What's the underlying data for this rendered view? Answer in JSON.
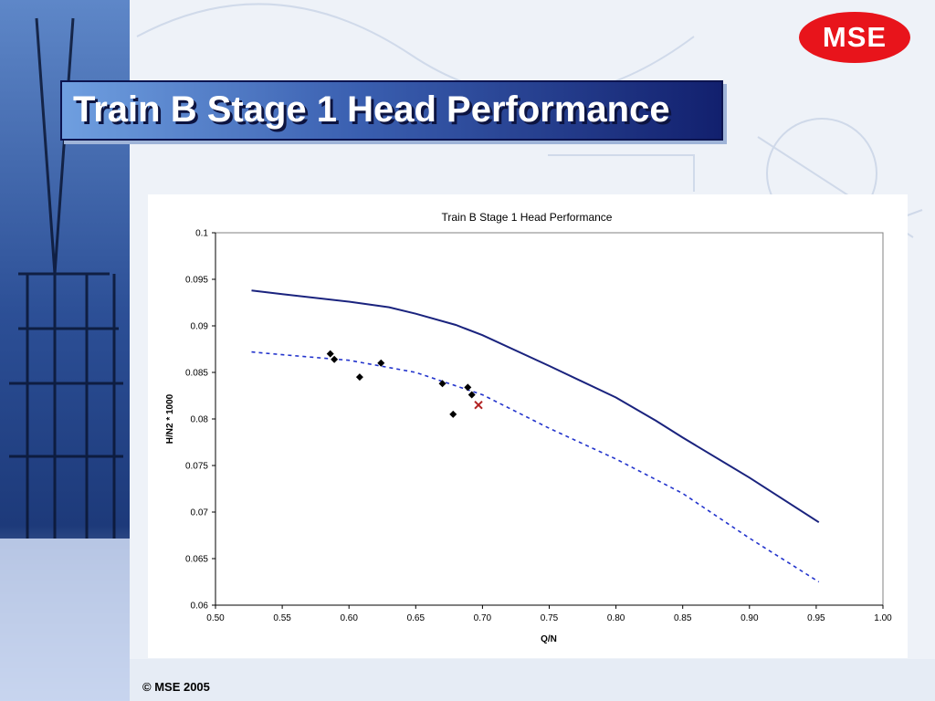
{
  "slide": {
    "title": "Train B Stage 1 Head Performance",
    "logo_text": "MSE",
    "footer": "© MSE 2005",
    "colors": {
      "logo": "#e8141b",
      "title_dark": "#12206e",
      "title_light": "#6f9fe0"
    }
  },
  "chart_data": {
    "type": "scatter",
    "title": "Train B Stage 1 Head Performance",
    "xlabel": "Q/N",
    "ylabel": "H/N2 * 1000",
    "xlim": [
      0.5,
      1.0
    ],
    "ylim": [
      0.06,
      0.1
    ],
    "x_ticks": [
      "0.50",
      "0.55",
      "0.60",
      "0.65",
      "0.70",
      "0.75",
      "0.80",
      "0.85",
      "0.90",
      "0.95",
      "1.00"
    ],
    "y_ticks": [
      "0.06",
      "0.065",
      "0.07",
      "0.075",
      "0.08",
      "0.085",
      "0.09",
      "0.095",
      "0.1"
    ],
    "grid": true,
    "legend": "none",
    "series": [
      {
        "style": "solid-line",
        "color": "#1a237e",
        "points": [
          [
            0.527,
            0.0938
          ],
          [
            0.55,
            0.0934
          ],
          [
            0.6,
            0.0926
          ],
          [
            0.63,
            0.092
          ],
          [
            0.65,
            0.0913
          ],
          [
            0.68,
            0.0901
          ],
          [
            0.7,
            0.089
          ],
          [
            0.75,
            0.0857
          ],
          [
            0.8,
            0.0823
          ],
          [
            0.83,
            0.0798
          ],
          [
            0.85,
            0.078
          ],
          [
            0.9,
            0.0737
          ],
          [
            0.952,
            0.0689
          ]
        ]
      },
      {
        "style": "dashed-line",
        "color": "#2233cc",
        "points": [
          [
            0.527,
            0.0872
          ],
          [
            0.55,
            0.0869
          ],
          [
            0.6,
            0.0863
          ],
          [
            0.65,
            0.085
          ],
          [
            0.7,
            0.0826
          ],
          [
            0.75,
            0.079
          ],
          [
            0.8,
            0.0757
          ],
          [
            0.85,
            0.072
          ],
          [
            0.9,
            0.0672
          ],
          [
            0.952,
            0.0625
          ]
        ]
      },
      {
        "style": "markers-diamond",
        "color": "#000000",
        "points": [
          [
            0.586,
            0.087
          ],
          [
            0.589,
            0.0864
          ],
          [
            0.608,
            0.0845
          ],
          [
            0.624,
            0.086
          ],
          [
            0.67,
            0.0838
          ],
          [
            0.678,
            0.0805
          ],
          [
            0.689,
            0.0834
          ],
          [
            0.692,
            0.0826
          ]
        ]
      },
      {
        "style": "marker-x",
        "color": "#b22222",
        "points": [
          [
            0.697,
            0.0815
          ]
        ]
      }
    ]
  }
}
